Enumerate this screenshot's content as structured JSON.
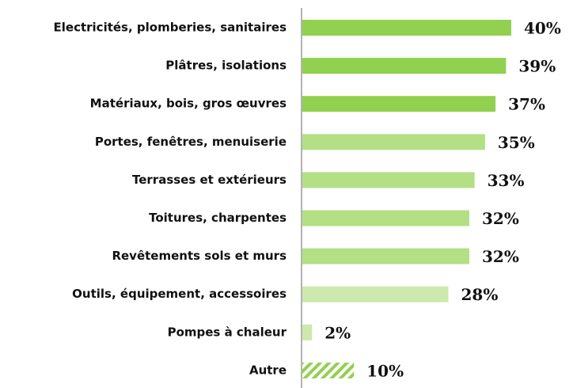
{
  "chart_data": {
    "type": "bar",
    "orientation": "horizontal",
    "categories": [
      "Electricités, plomberies, sanitaires",
      "Plâtres, isolations",
      "Matériaux, bois, gros œuvres",
      "Portes, fenêtres, menuiserie",
      "Terrasses et extérieurs",
      "Toitures, charpentes",
      "Revêtements sols et murs",
      "Outils, équipement, accessoires",
      "Pompes à chaleur",
      "Autre"
    ],
    "values": [
      40,
      39,
      37,
      35,
      33,
      32,
      32,
      28,
      2,
      10
    ],
    "value_labels": [
      "40%",
      "39%",
      "37%",
      "35%",
      "33%",
      "32%",
      "32%",
      "28%",
      "2%",
      "10%"
    ],
    "colors": [
      "#92d050",
      "#92d050",
      "#92d050",
      "#b3df85",
      "#b3df85",
      "#b3df85",
      "#b3df85",
      "#cde9ad",
      "#cde9ad",
      "#92d050"
    ],
    "hatch": [
      false,
      false,
      false,
      false,
      false,
      false,
      false,
      false,
      false,
      true
    ]
  }
}
